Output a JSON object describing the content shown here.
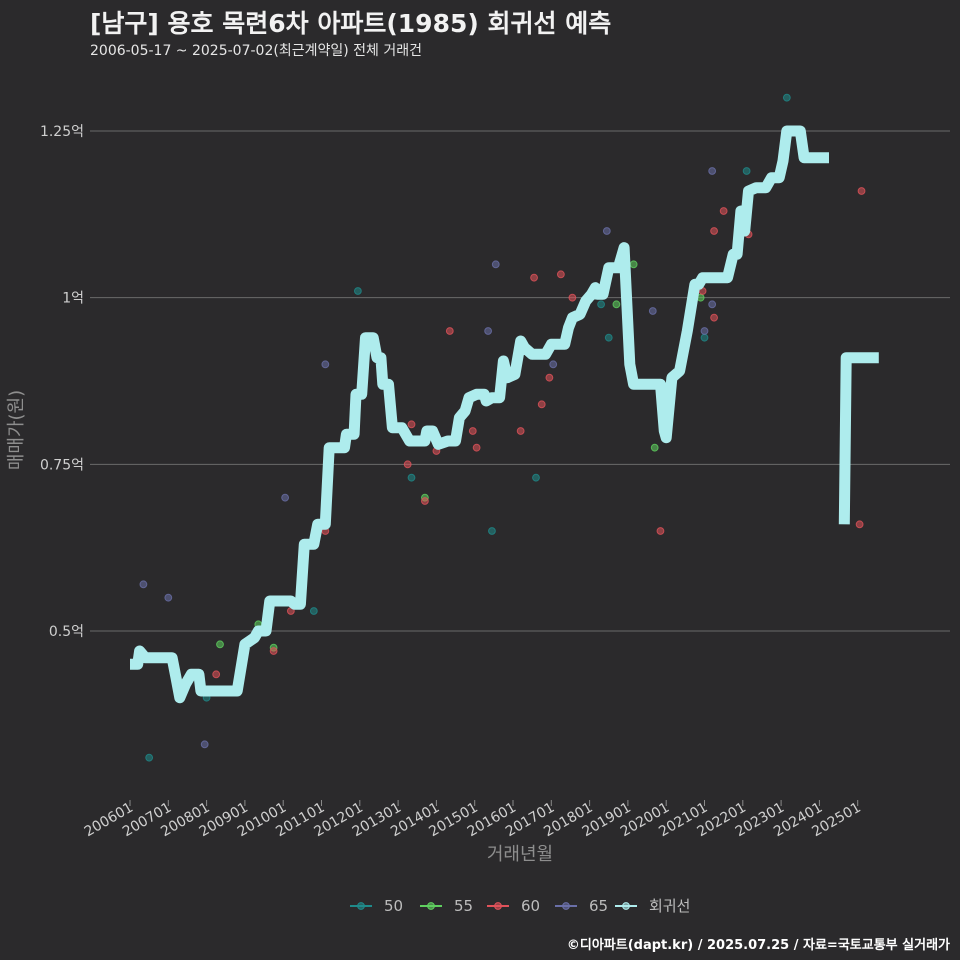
{
  "header": {
    "title": "[남구] 용호 목련6차 아파트(1985) 회귀선 예측",
    "subtitle": "2006-05-17 ~ 2025-07-02(최근계약일) 전체 거래건"
  },
  "caption": "©디아파트(dapt.kr) / 2025.07.25 / 자료=국토교통부 실거래가",
  "colors": {
    "background": "#2b2a2c",
    "grid": "#6a6a6a",
    "regression": "#aeeced",
    "s50": "#1f8a8a",
    "s55": "#5fcf5f",
    "s60": "#e0525a",
    "s65": "#6a6fa8"
  },
  "chart_data": {
    "type": "scatter",
    "title": "[남구] 용호 목련6차 아파트(1985) 회귀선 예측",
    "xlabel": "거래년월",
    "ylabel": "매매가(원)",
    "xlim": [
      2006.0,
      2026.0
    ],
    "ylim": [
      0.23,
      1.5
    ],
    "y_ticks": [
      {
        "value": 0.5,
        "label": "0.5억"
      },
      {
        "value": 0.75,
        "label": "0.75억"
      },
      {
        "value": 1.0,
        "label": "1억"
      },
      {
        "value": 1.25,
        "label": "1.25억"
      }
    ],
    "x_ticks": [
      {
        "value": 2006.0,
        "label": "200601"
      },
      {
        "value": 2007.0,
        "label": "200701"
      },
      {
        "value": 2008.0,
        "label": "200801"
      },
      {
        "value": 2009.0,
        "label": "200901"
      },
      {
        "value": 2010.0,
        "label": "201001"
      },
      {
        "value": 2011.0,
        "label": "201101"
      },
      {
        "value": 2012.0,
        "label": "201201"
      },
      {
        "value": 2013.0,
        "label": "201301"
      },
      {
        "value": 2014.0,
        "label": "201401"
      },
      {
        "value": 2015.0,
        "label": "201501"
      },
      {
        "value": 2016.0,
        "label": "201601"
      },
      {
        "value": 2017.0,
        "label": "201701"
      },
      {
        "value": 2018.0,
        "label": "201801"
      },
      {
        "value": 2019.0,
        "label": "201901"
      },
      {
        "value": 2020.0,
        "label": "202001"
      },
      {
        "value": 2021.0,
        "label": "202101"
      },
      {
        "value": 2022.0,
        "label": "202201"
      },
      {
        "value": 2023.0,
        "label": "202301"
      },
      {
        "value": 2024.0,
        "label": "202401"
      },
      {
        "value": 2025.0,
        "label": "202501"
      }
    ],
    "legend": [
      "50",
      "55",
      "60",
      "65",
      "회귀선"
    ],
    "series": [
      {
        "name": "50",
        "color_key": "s50",
        "points": [
          [
            2006.5,
            0.31
          ],
          [
            2008.0,
            0.4
          ],
          [
            2010.8,
            0.53
          ],
          [
            2011.95,
            1.01
          ],
          [
            2013.35,
            0.73
          ],
          [
            2015.45,
            0.65
          ],
          [
            2016.6,
            0.73
          ],
          [
            2018.3,
            0.99
          ],
          [
            2018.5,
            0.94
          ],
          [
            2021.0,
            0.94
          ],
          [
            2022.1,
            1.19
          ],
          [
            2023.15,
            1.3
          ],
          [
            2023.95,
            1.21
          ]
        ]
      },
      {
        "name": "55",
        "color_key": "s55",
        "points": [
          [
            2009.35,
            0.51
          ],
          [
            2009.75,
            0.475
          ],
          [
            2008.35,
            0.48
          ],
          [
            2013.7,
            0.7
          ],
          [
            2018.7,
            0.99
          ],
          [
            2019.15,
            1.05
          ],
          [
            2019.7,
            0.775
          ],
          [
            2020.9,
            1.0
          ]
        ]
      },
      {
        "name": "60",
        "color_key": "s60",
        "points": [
          [
            2008.25,
            0.435
          ],
          [
            2009.75,
            0.47
          ],
          [
            2010.2,
            0.53
          ],
          [
            2011.1,
            0.65
          ],
          [
            2013.25,
            0.75
          ],
          [
            2013.35,
            0.81
          ],
          [
            2013.7,
            0.695
          ],
          [
            2014.0,
            0.77
          ],
          [
            2014.35,
            0.95
          ],
          [
            2014.95,
            0.8
          ],
          [
            2015.05,
            0.775
          ],
          [
            2016.2,
            0.8
          ],
          [
            2016.55,
            1.03
          ],
          [
            2016.95,
            0.88
          ],
          [
            2016.75,
            0.84
          ],
          [
            2017.25,
            1.035
          ],
          [
            2017.55,
            1.0
          ],
          [
            2019.85,
            0.65
          ],
          [
            2020.95,
            1.01
          ],
          [
            2021.25,
            0.97
          ],
          [
            2021.5,
            1.13
          ],
          [
            2021.95,
            1.1
          ],
          [
            2022.15,
            1.095
          ],
          [
            2021.25,
            1.1
          ],
          [
            2025.05,
            0.66
          ],
          [
            2025.1,
            1.16
          ]
        ]
      },
      {
        "name": "65",
        "color_key": "s65",
        "points": [
          [
            2006.35,
            0.57
          ],
          [
            2007.0,
            0.55
          ],
          [
            2007.95,
            0.33
          ],
          [
            2010.05,
            0.7
          ],
          [
            2011.1,
            0.9
          ],
          [
            2012.1,
            0.87
          ],
          [
            2015.35,
            0.95
          ],
          [
            2015.55,
            1.05
          ],
          [
            2017.05,
            0.9
          ],
          [
            2018.45,
            1.1
          ],
          [
            2019.65,
            0.98
          ],
          [
            2021.0,
            0.95
          ],
          [
            2021.2,
            0.99
          ],
          [
            2021.2,
            1.19
          ],
          [
            2023.8,
            1.21
          ]
        ]
      }
    ],
    "regression": [
      [
        2006.0,
        0.45
      ],
      [
        2006.2,
        0.45
      ],
      [
        2006.25,
        0.47
      ],
      [
        2006.4,
        0.46
      ],
      [
        2006.9,
        0.46
      ],
      [
        2007.1,
        0.46
      ],
      [
        2007.2,
        0.43
      ],
      [
        2007.3,
        0.4
      ],
      [
        2007.45,
        0.42
      ],
      [
        2007.6,
        0.435
      ],
      [
        2007.8,
        0.435
      ],
      [
        2007.85,
        0.41
      ],
      [
        2008.0,
        0.41
      ],
      [
        2008.8,
        0.41
      ],
      [
        2009.0,
        0.48
      ],
      [
        2009.25,
        0.49
      ],
      [
        2009.35,
        0.5
      ],
      [
        2009.55,
        0.5
      ],
      [
        2009.65,
        0.545
      ],
      [
        2009.8,
        0.545
      ],
      [
        2010.2,
        0.545
      ],
      [
        2010.3,
        0.54
      ],
      [
        2010.45,
        0.54
      ],
      [
        2010.55,
        0.63
      ],
      [
        2010.8,
        0.63
      ],
      [
        2010.9,
        0.66
      ],
      [
        2011.1,
        0.66
      ],
      [
        2011.2,
        0.775
      ],
      [
        2011.6,
        0.775
      ],
      [
        2011.65,
        0.795
      ],
      [
        2011.85,
        0.795
      ],
      [
        2011.9,
        0.855
      ],
      [
        2012.05,
        0.855
      ],
      [
        2012.15,
        0.94
      ],
      [
        2012.35,
        0.94
      ],
      [
        2012.45,
        0.91
      ],
      [
        2012.55,
        0.91
      ],
      [
        2012.6,
        0.87
      ],
      [
        2012.75,
        0.87
      ],
      [
        2012.85,
        0.805
      ],
      [
        2013.0,
        0.805
      ],
      [
        2013.1,
        0.805
      ],
      [
        2013.3,
        0.785
      ],
      [
        2013.7,
        0.785
      ],
      [
        2013.75,
        0.8
      ],
      [
        2013.9,
        0.8
      ],
      [
        2014.05,
        0.78
      ],
      [
        2014.3,
        0.785
      ],
      [
        2014.5,
        0.785
      ],
      [
        2014.6,
        0.82
      ],
      [
        2014.75,
        0.83
      ],
      [
        2014.85,
        0.85
      ],
      [
        2015.05,
        0.855
      ],
      [
        2015.25,
        0.855
      ],
      [
        2015.3,
        0.845
      ],
      [
        2015.45,
        0.85
      ],
      [
        2015.65,
        0.85
      ],
      [
        2015.75,
        0.905
      ],
      [
        2015.85,
        0.88
      ],
      [
        2016.05,
        0.885
      ],
      [
        2016.2,
        0.935
      ],
      [
        2016.3,
        0.925
      ],
      [
        2016.5,
        0.915
      ],
      [
        2016.6,
        0.915
      ],
      [
        2016.85,
        0.915
      ],
      [
        2017.0,
        0.93
      ],
      [
        2017.1,
        0.93
      ],
      [
        2017.35,
        0.93
      ],
      [
        2017.45,
        0.955
      ],
      [
        2017.55,
        0.97
      ],
      [
        2017.75,
        0.975
      ],
      [
        2017.9,
        0.995
      ],
      [
        2018.05,
        1.005
      ],
      [
        2018.15,
        1.015
      ],
      [
        2018.2,
        1.005
      ],
      [
        2018.35,
        1.005
      ],
      [
        2018.5,
        1.045
      ],
      [
        2018.75,
        1.045
      ],
      [
        2018.9,
        1.075
      ],
      [
        2019.05,
        0.9
      ],
      [
        2019.15,
        0.87
      ],
      [
        2019.3,
        0.87
      ],
      [
        2019.7,
        0.87
      ],
      [
        2019.85,
        0.87
      ],
      [
        2019.95,
        0.8
      ],
      [
        2020.0,
        0.79
      ],
      [
        2020.15,
        0.88
      ],
      [
        2020.35,
        0.89
      ],
      [
        2020.55,
        0.95
      ],
      [
        2020.75,
        1.02
      ],
      [
        2020.85,
        1.02
      ],
      [
        2020.95,
        1.03
      ],
      [
        2021.1,
        1.03
      ],
      [
        2021.5,
        1.03
      ],
      [
        2021.6,
        1.03
      ],
      [
        2021.75,
        1.065
      ],
      [
        2021.85,
        1.065
      ],
      [
        2021.95,
        1.13
      ],
      [
        2022.05,
        1.1
      ],
      [
        2022.15,
        1.16
      ],
      [
        2022.35,
        1.165
      ],
      [
        2022.6,
        1.165
      ],
      [
        2022.75,
        1.18
      ],
      [
        2022.95,
        1.18
      ],
      [
        2023.05,
        1.205
      ],
      [
        2023.15,
        1.25
      ],
      [
        2023.5,
        1.25
      ],
      [
        2023.6,
        1.21
      ],
      [
        2023.85,
        1.21
      ],
      [
        2024.25,
        1.21
      ]
    ],
    "prediction": [
      [
        2024.65,
        0.66
      ],
      [
        2024.7,
        0.91
      ],
      [
        2025.55,
        0.91
      ]
    ]
  }
}
